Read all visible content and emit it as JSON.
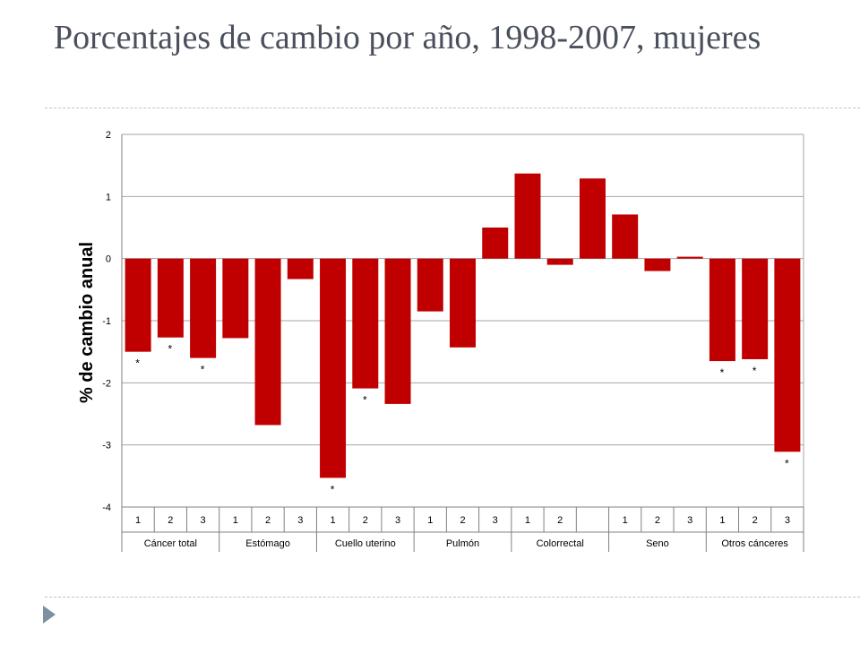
{
  "slide": {
    "title": "Porcentajes de cambio por año, 1998-2007, mujeres"
  },
  "chart_data": {
    "type": "bar",
    "ylabel": "% de cambio anual",
    "ylim": [
      -4,
      2
    ],
    "yticks": [
      "2",
      "1",
      "0",
      "-1",
      "-2",
      "-3",
      "-4"
    ],
    "ytick_values": [
      2,
      1,
      0,
      -1,
      -2,
      -3,
      -4
    ],
    "color": "#c00000",
    "grid": true,
    "groups": [
      {
        "name": "Cáncer total",
        "categories": [
          "1",
          "2",
          "3"
        ],
        "values": [
          -1.5,
          -1.27,
          -1.6
        ],
        "significant": [
          true,
          true,
          true
        ]
      },
      {
        "name": "Estómago",
        "categories": [
          "1",
          "2",
          "3"
        ],
        "values": [
          -1.28,
          -2.68,
          -0.33
        ],
        "significant": [
          false,
          false,
          false
        ]
      },
      {
        "name": "Cuello uterino",
        "categories": [
          "1",
          "2",
          "3"
        ],
        "values": [
          -3.53,
          -2.09,
          -2.34
        ],
        "significant": [
          true,
          true,
          false
        ]
      },
      {
        "name": "Pulmón",
        "categories": [
          "1",
          "2",
          "3"
        ],
        "values": [
          -0.85,
          -1.43,
          0.5
        ],
        "significant": [
          false,
          false,
          false
        ]
      },
      {
        "name": "Colorrectal",
        "categories": [
          "1",
          "2",
          ""
        ],
        "values": [
          1.37,
          -0.1,
          1.29
        ],
        "significant": [
          false,
          false,
          false
        ]
      },
      {
        "name": "Seno",
        "categories": [
          "1",
          "2",
          "3"
        ],
        "values": [
          0.71,
          -0.2,
          0.03
        ],
        "significant": [
          false,
          false,
          false
        ]
      },
      {
        "name": "Otros cánceres",
        "categories": [
          "1",
          "2",
          "3"
        ],
        "values": [
          -1.65,
          -1.62,
          -3.11
        ],
        "significant": [
          true,
          true,
          true
        ]
      }
    ],
    "significance_marker": "*"
  }
}
